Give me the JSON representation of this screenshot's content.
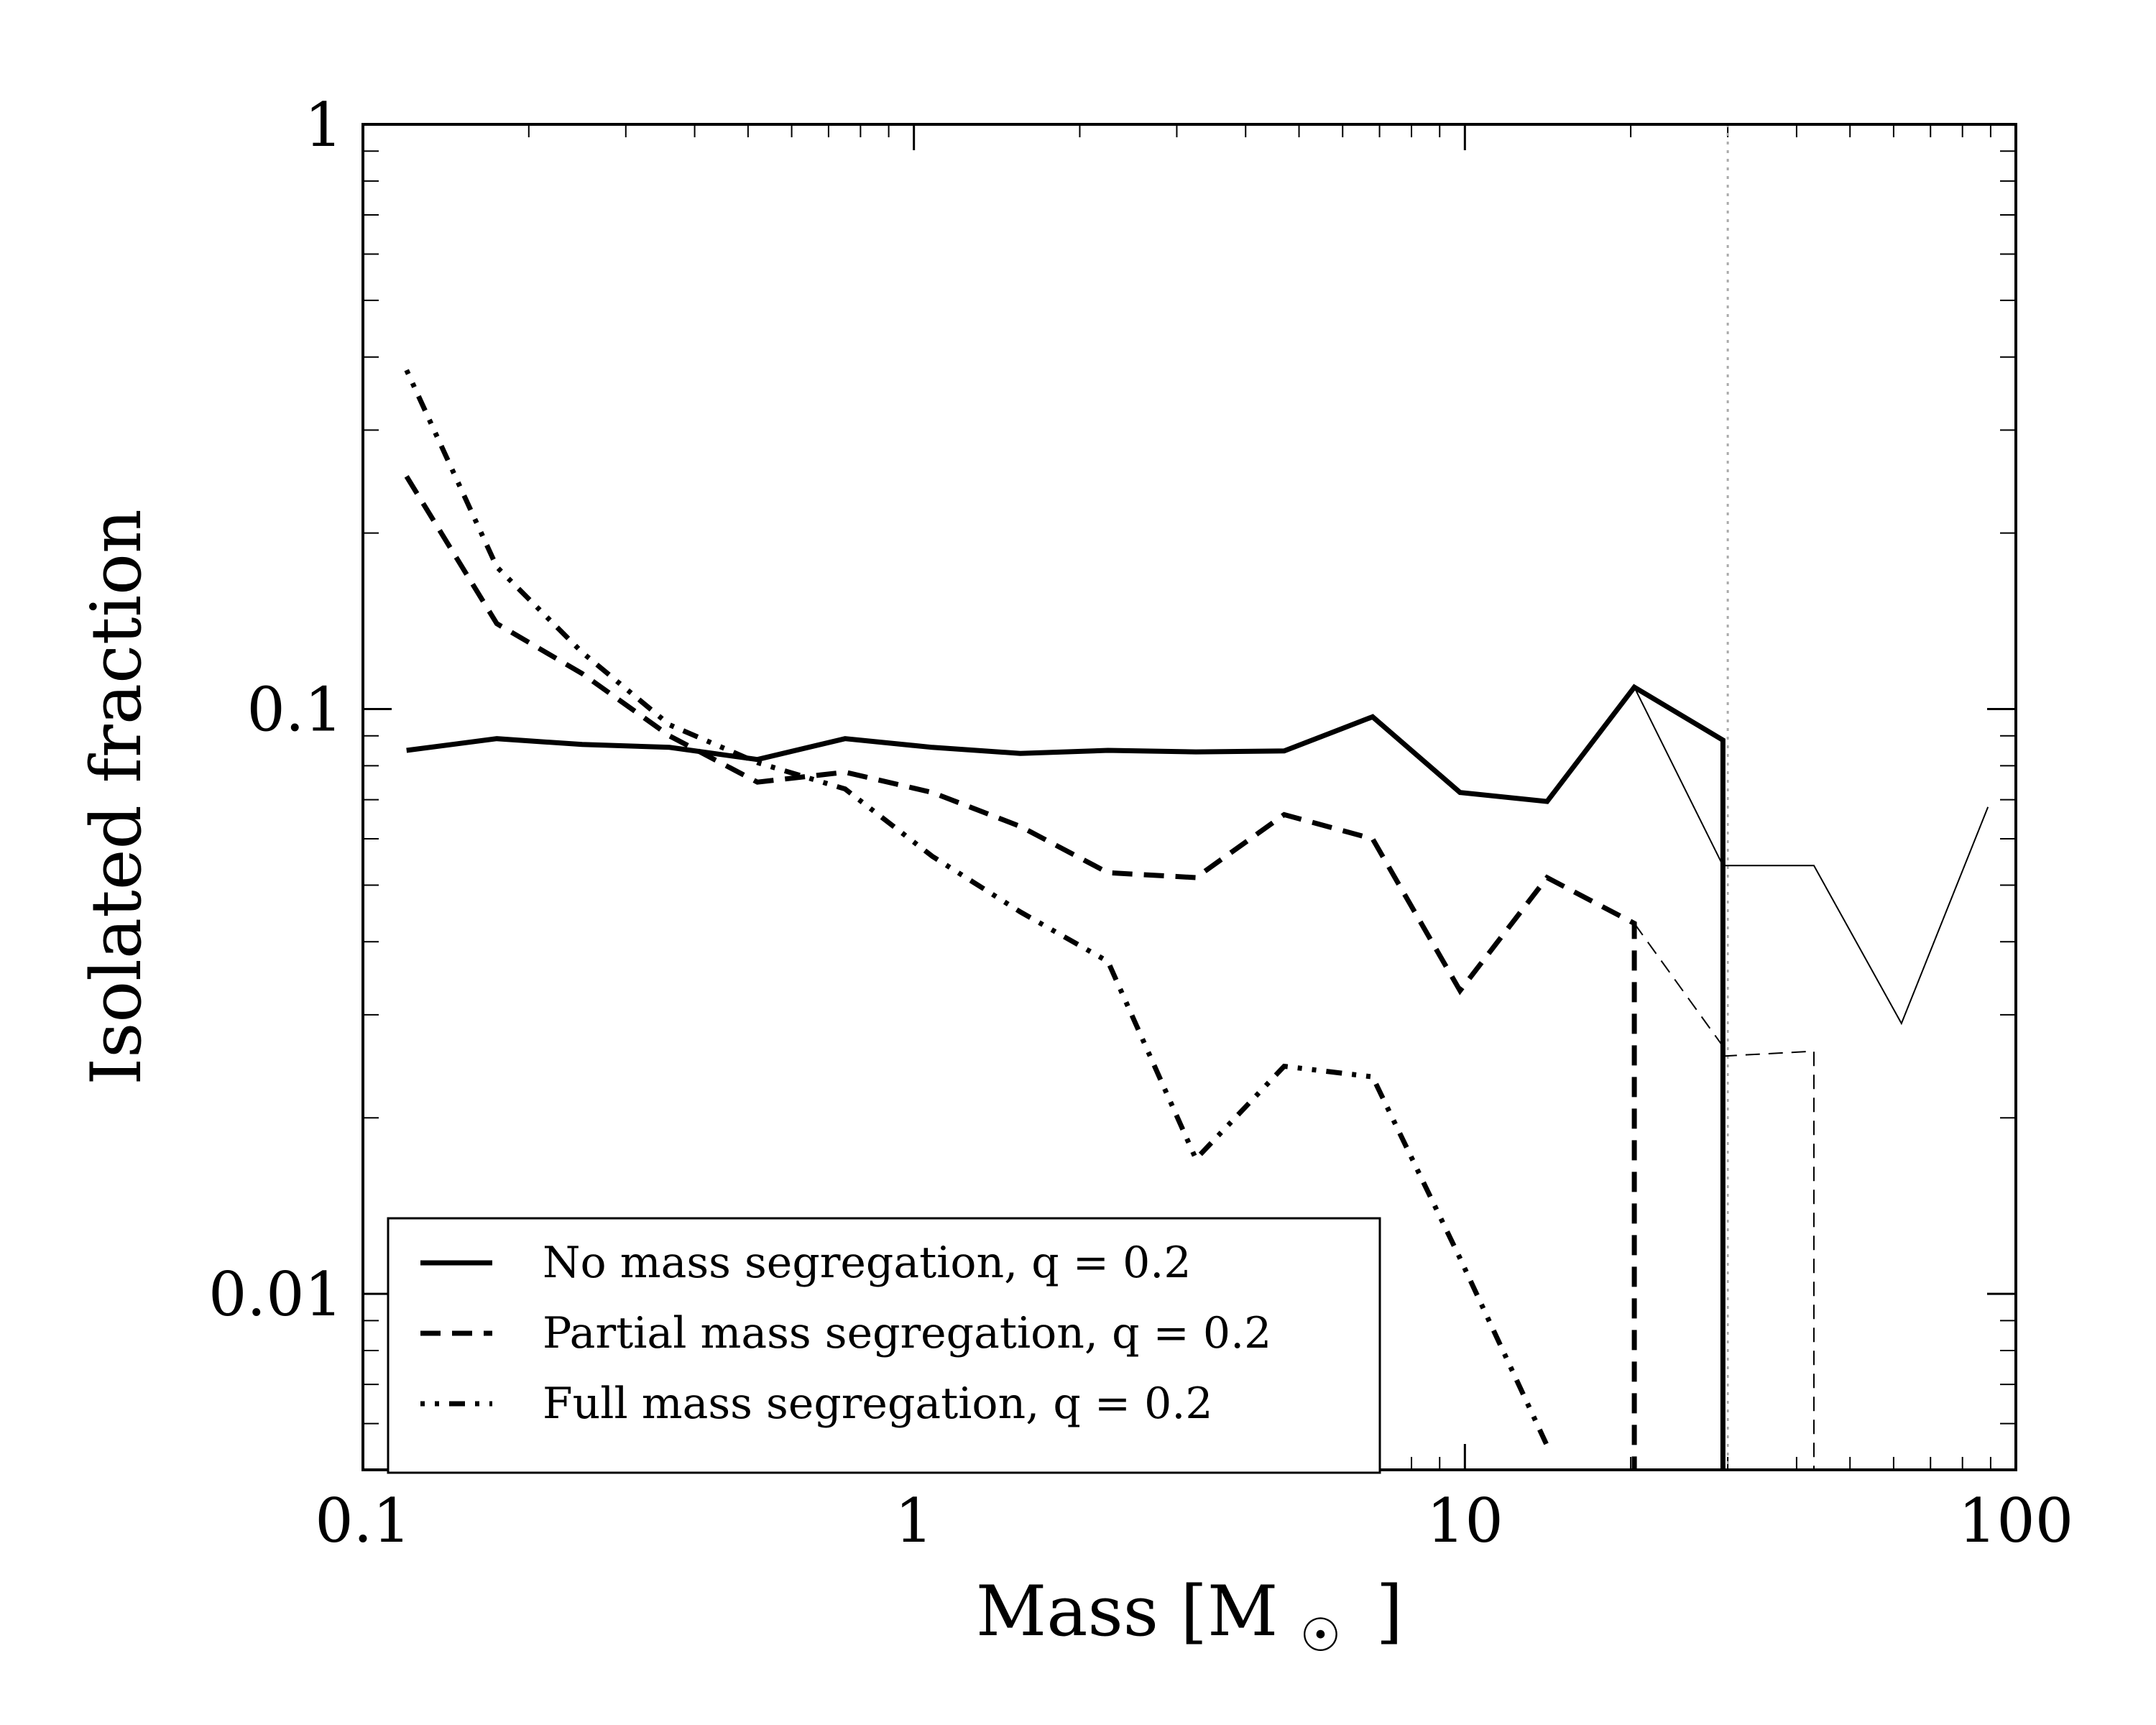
{
  "chart_data": {
    "type": "line",
    "title": "",
    "xlabel": "Mass [M",
    "xlabel_symbol": "☉",
    "xlabel_close": "]",
    "ylabel": "Isolated fraction",
    "xscale": "log",
    "yscale": "log",
    "xlim": [
      0.1,
      100
    ],
    "ylim": [
      0.005,
      1
    ],
    "x_ticks": [
      {
        "value": 0.1,
        "label": "0.1"
      },
      {
        "value": 1,
        "label": "1"
      },
      {
        "value": 10,
        "label": "10"
      },
      {
        "value": 100,
        "label": "100"
      }
    ],
    "y_ticks": [
      {
        "value": 0.01,
        "label": "0.01"
      },
      {
        "value": 0.1,
        "label": "0.1"
      },
      {
        "value": 1,
        "label": "1"
      }
    ],
    "grid": false,
    "legend_position": "bottom-left",
    "reference_line": {
      "x": 30,
      "style": "dotted",
      "color": "#aaaaaa"
    },
    "series": [
      {
        "name": "No mass segregation, q = 0.2",
        "style": "solid",
        "width": "thick",
        "legend": true,
        "points": [
          [
            0.12,
            0.085
          ],
          [
            0.175,
            0.089
          ],
          [
            0.25,
            0.087
          ],
          [
            0.36,
            0.086
          ],
          [
            0.52,
            0.082
          ],
          [
            0.75,
            0.089
          ],
          [
            1.08,
            0.086
          ],
          [
            1.56,
            0.084
          ],
          [
            2.25,
            0.085
          ],
          [
            3.25,
            0.0845
          ],
          [
            4.7,
            0.0848
          ],
          [
            6.8,
            0.097
          ],
          [
            9.8,
            0.072
          ],
          [
            14.1,
            0.0695
          ],
          [
            20.3,
            0.109
          ],
          [
            29.4,
            0.0885
          ],
          [
            29.4,
            0.005
          ]
        ]
      },
      {
        "name": "Partial mass segregation, q = 0.2",
        "style": "dashed",
        "width": "thick",
        "legend": true,
        "points": [
          [
            0.12,
            0.25
          ],
          [
            0.175,
            0.14
          ],
          [
            0.25,
            0.115
          ],
          [
            0.36,
            0.09
          ],
          [
            0.52,
            0.075
          ],
          [
            0.75,
            0.078
          ],
          [
            1.08,
            0.072
          ],
          [
            1.56,
            0.063
          ],
          [
            2.25,
            0.0525
          ],
          [
            3.25,
            0.0515
          ],
          [
            4.7,
            0.066
          ],
          [
            6.8,
            0.06
          ],
          [
            9.8,
            0.033
          ],
          [
            14.1,
            0.0515
          ],
          [
            20.3,
            0.043
          ],
          [
            20.3,
            0.005
          ]
        ]
      },
      {
        "name": "Full mass segregation, q = 0.2",
        "style": "dashdot",
        "width": "thick",
        "legend": true,
        "points": [
          [
            0.12,
            0.38
          ],
          [
            0.175,
            0.175
          ],
          [
            0.25,
            0.125
          ],
          [
            0.36,
            0.094
          ],
          [
            0.52,
            0.081
          ],
          [
            0.75,
            0.073
          ],
          [
            1.08,
            0.056
          ],
          [
            1.56,
            0.045
          ],
          [
            2.25,
            0.037
          ],
          [
            3.25,
            0.017
          ],
          [
            4.7,
            0.0245
          ],
          [
            6.8,
            0.0235
          ],
          [
            9.8,
            0.0115
          ],
          [
            14.1,
            0.0055
          ]
        ]
      },
      {
        "style": "solid",
        "width": "thin",
        "legend": false,
        "points": [
          [
            20.3,
            0.109
          ],
          [
            29.4,
            0.054
          ],
          [
            43,
            0.054
          ],
          [
            62,
            0.029
          ],
          [
            89,
            0.068
          ]
        ]
      },
      {
        "style": "dashed",
        "width": "thin",
        "legend": false,
        "points": [
          [
            20.3,
            0.043
          ],
          [
            29.4,
            0.0265
          ],
          [
            29.4,
            0.0255
          ],
          [
            43,
            0.026
          ],
          [
            43,
            0.005
          ]
        ]
      }
    ]
  }
}
